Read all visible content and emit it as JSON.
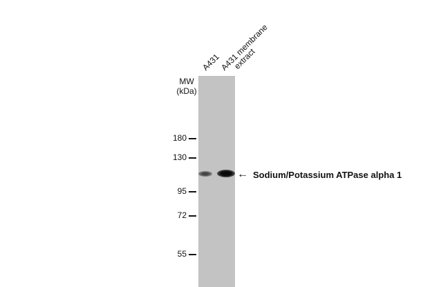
{
  "lanes": [
    {
      "label": "A431"
    },
    {
      "label": "A431 membrane",
      "label2": "extract"
    }
  ],
  "mw_header": {
    "line1": "MW",
    "line2": "(kDa)"
  },
  "markers": [
    "180",
    "130",
    "95",
    "72",
    "55"
  ],
  "target": {
    "label": "Sodium/Potassium ATPase alpha 1",
    "arrow": "left-arrow"
  },
  "colors": {
    "membrane": "#c3c3c3",
    "band": "#1a1a1a"
  }
}
